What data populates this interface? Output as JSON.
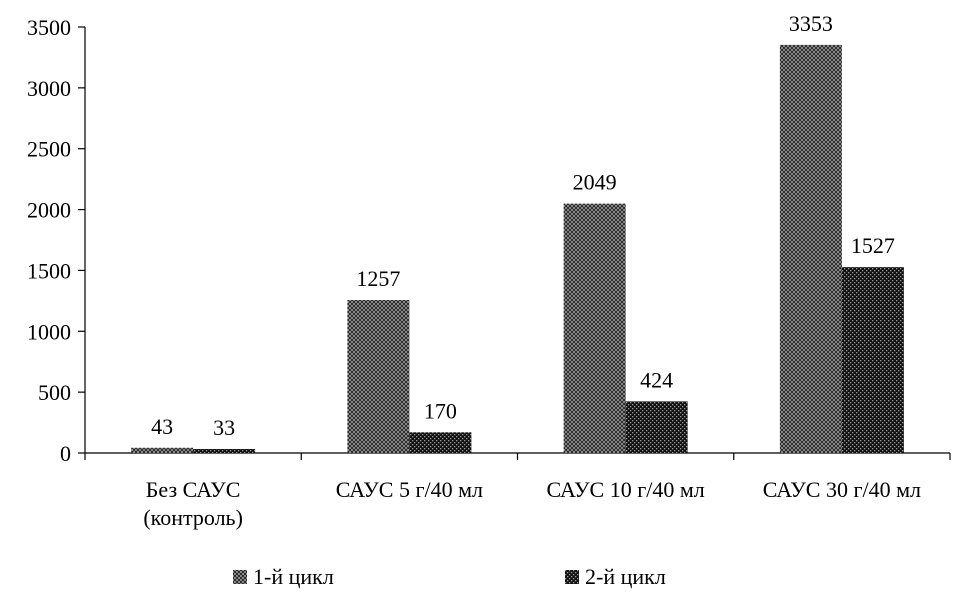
{
  "chart_data": {
    "type": "bar",
    "title": "",
    "xlabel": "",
    "ylabel": "",
    "categories": [
      [
        "Без САУС",
        "(контроль)"
      ],
      [
        "САУС 5 г/40 мл"
      ],
      [
        "САУС 10 г/40 мл"
      ],
      [
        "САУС 30 г/40 мл"
      ]
    ],
    "series": [
      {
        "name": "1-й цикл",
        "values": [
          43,
          1257,
          2049,
          3353
        ],
        "color": "#6e6e6e"
      },
      {
        "name": "2-й цикл",
        "values": [
          33,
          170,
          424,
          1527
        ],
        "color": "#1a1a1a"
      }
    ],
    "ylim": [
      0,
      3500
    ],
    "yticks": [
      "0",
      "500",
      "1000",
      "1500",
      "2000",
      "2500",
      "3000",
      "3500"
    ],
    "grid": false,
    "legend_position": "bottom"
  }
}
